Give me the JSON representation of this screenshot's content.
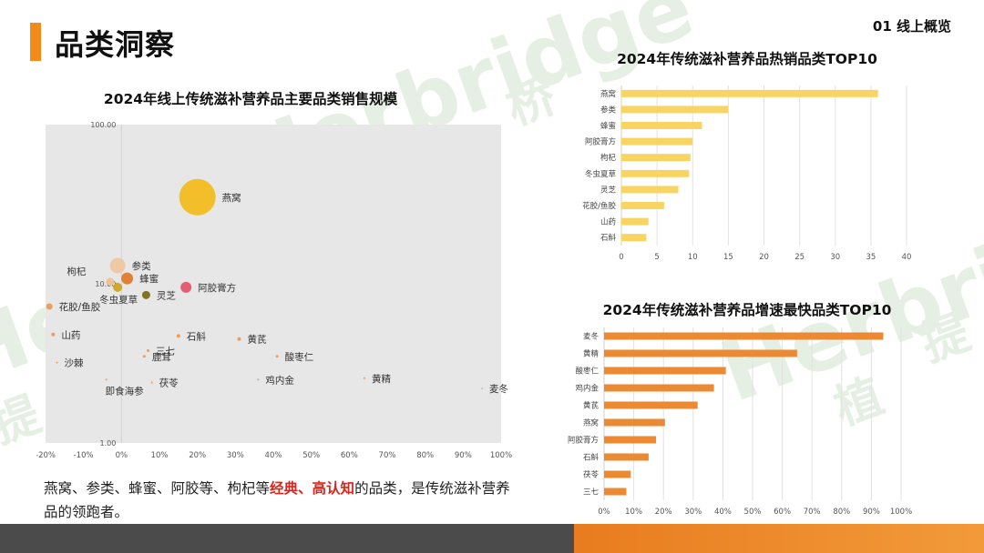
{
  "page": {
    "title": "品类洞察",
    "section": "01 线上概览",
    "watermark_brand": "Herbridge",
    "watermark_cn": [
      "植",
      "桥",
      "提"
    ]
  },
  "summary": {
    "prefix": "燕窝、参类、蜂蜜、阿胶等、枸杞等",
    "highlight1": "经典",
    "sep": "、",
    "highlight2": "高认知",
    "suffix": "的品类，是传统滋补营养品的领跑者。"
  },
  "colors": {
    "accent": "#f28a1c",
    "top10_bar": "#f8d463",
    "growth_bar": "#ec8a33",
    "highlight_text": "#d7261e"
  },
  "chart_data": [
    {
      "type": "scatter",
      "subtype": "bubble",
      "title": "2024年线上传统滋补营养品主要品类销售规模",
      "x_ticks": [
        "-20%",
        "-10%",
        "0%",
        "10%",
        "20%",
        "30%",
        "40%",
        "50%",
        "60%",
        "70%",
        "80%",
        "90%",
        "100%"
      ],
      "xlim": [
        -20,
        100
      ],
      "y_scale": "log",
      "ylim": [
        1,
        100
      ],
      "y_tick_labels": [
        "100.00",
        "10.00",
        "1.00"
      ],
      "y_tick_values": [
        100,
        10,
        1
      ],
      "grid": false,
      "points": [
        {
          "label": "燕窝",
          "x": 20,
          "y": 35,
          "r": 20,
          "color": "#f3bc1a"
        },
        {
          "label": "参类",
          "x": -1,
          "y": 13,
          "r": 8.5,
          "color": "#f0c6a0"
        },
        {
          "label": "蜂蜜",
          "x": 1.5,
          "y": 10.8,
          "r": 6.5,
          "color": "#e27826"
        },
        {
          "label": "枸杞",
          "x": -3,
          "y": 10.3,
          "r": 4.5,
          "color": "#f0c48f"
        },
        {
          "label": "冬虫夏草",
          "x": -1,
          "y": 9.5,
          "r": 5,
          "color": "#d1a320"
        },
        {
          "label": "阿胶膏方",
          "x": 17,
          "y": 9.5,
          "r": 6,
          "color": "#e35368"
        },
        {
          "label": "灵芝",
          "x": 6.5,
          "y": 8.5,
          "r": 4.5,
          "color": "#7a6a10"
        },
        {
          "label": "花胶/鱼胶",
          "x": -19,
          "y": 7.2,
          "r": 3.5,
          "color": "#ef9651"
        },
        {
          "label": "山药",
          "x": -18,
          "y": 4.8,
          "r": 2,
          "color": "#ef9651"
        },
        {
          "label": "石斛",
          "x": 15,
          "y": 4.7,
          "r": 2,
          "color": "#ef9651"
        },
        {
          "label": "黄芪",
          "x": 31,
          "y": 4.5,
          "r": 2,
          "color": "#ef9651"
        },
        {
          "label": "三七",
          "x": 7,
          "y": 3.8,
          "r": 1.5,
          "color": "#ef9651"
        },
        {
          "label": "鹿茸",
          "x": 6,
          "y": 3.5,
          "r": 1.5,
          "color": "#ef9651"
        },
        {
          "label": "酸枣仁",
          "x": 41,
          "y": 3.5,
          "r": 1.5,
          "color": "#ef9651"
        },
        {
          "label": "沙棘",
          "x": -17,
          "y": 3.2,
          "r": 1,
          "color": "#ef9651"
        },
        {
          "label": "即食海参",
          "x": -4,
          "y": 2.5,
          "r": 1,
          "color": "#ef9651"
        },
        {
          "label": "茯苓",
          "x": 8,
          "y": 2.4,
          "r": 1,
          "color": "#ef9651"
        },
        {
          "label": "鸡内金",
          "x": 36,
          "y": 2.5,
          "r": 1,
          "color": "#ef9651"
        },
        {
          "label": "黄精",
          "x": 64,
          "y": 2.55,
          "r": 1,
          "color": "#ef9651"
        },
        {
          "label": "麦冬",
          "x": 95,
          "y": 2.2,
          "r": 0.8,
          "color": "#ef9651"
        }
      ]
    },
    {
      "type": "bar",
      "orientation": "horizontal",
      "title": "2024年传统滋补营养品热销品类TOP10",
      "categories": [
        "燕窝",
        "参类",
        "蜂蜜",
        "阿胶膏方",
        "枸杞",
        "冬虫夏草",
        "灵芝",
        "花胶/鱼胶",
        "山药",
        "石斛"
      ],
      "values": [
        36,
        15,
        11.3,
        10,
        9.7,
        9.5,
        8,
        6,
        3.8,
        3.5
      ],
      "xlim": [
        0,
        40
      ],
      "x_ticks": [
        0,
        5,
        10,
        15,
        20,
        25,
        30,
        35,
        40
      ],
      "grid": true
    },
    {
      "type": "bar",
      "orientation": "horizontal",
      "title": "2024年传统滋补营养品增速最快品类TOP10",
      "categories": [
        "麦冬",
        "黄精",
        "酸枣仁",
        "鸡内金",
        "黄芪",
        "燕窝",
        "阿胶膏方",
        "石斛",
        "茯苓",
        "三七"
      ],
      "values": [
        94,
        65,
        41,
        37,
        31.5,
        20.5,
        17.5,
        15,
        9,
        7.5
      ],
      "xlim": [
        0,
        100
      ],
      "x_ticks": [
        "0%",
        "10%",
        "20%",
        "30%",
        "40%",
        "50%",
        "60%",
        "70%",
        "80%",
        "90%",
        "100%"
      ],
      "grid": true
    }
  ]
}
